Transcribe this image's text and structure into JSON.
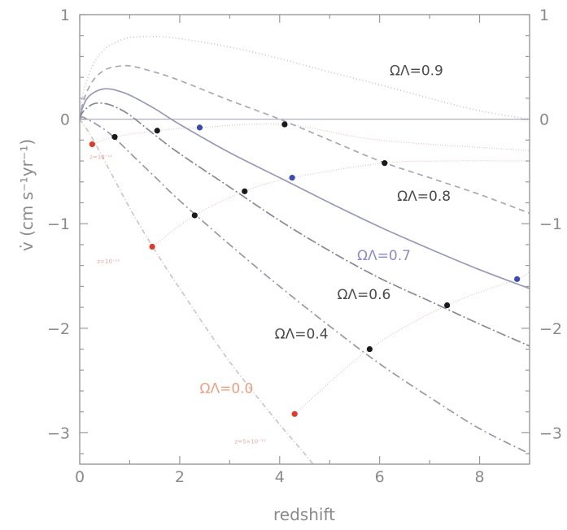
{
  "chart_data": {
    "type": "line",
    "xlabel": "redshift",
    "ylabel": "v̇ (cm s⁻¹yr⁻¹)",
    "xlim": [
      0,
      9
    ],
    "ylim": [
      -3.3,
      1
    ],
    "xticks": [
      "0",
      "2",
      "4",
      "6",
      "8"
    ],
    "yticks": [
      "1",
      "0",
      "−1",
      "−2",
      "−3"
    ],
    "zero_line": true,
    "series": [
      {
        "name": "Ω_Λ=0.9",
        "label_text": "ΩΛ=0.9",
        "color": "#c4c4dc",
        "dash": "1,3",
        "x": [
          0,
          0.05,
          0.15,
          0.3,
          0.5,
          0.7,
          1.0,
          1.5,
          2,
          3,
          4,
          5,
          6,
          7,
          8,
          9
        ],
        "y": [
          0,
          0.2,
          0.38,
          0.55,
          0.67,
          0.73,
          0.78,
          0.79,
          0.77,
          0.69,
          0.58,
          0.45,
          0.33,
          0.2,
          0.08,
          0
        ]
      },
      {
        "name": "Ω_Λ=0.8",
        "label_text": "ΩΛ=0.8",
        "color": "#a8a8b8",
        "dash": "7,5",
        "x": [
          0,
          0.05,
          0.15,
          0.3,
          0.5,
          0.7,
          1.0,
          1.5,
          2,
          3,
          4,
          5,
          6,
          7,
          8,
          9
        ],
        "y": [
          0,
          0.13,
          0.27,
          0.39,
          0.47,
          0.5,
          0.51,
          0.45,
          0.37,
          0.18,
          0,
          -0.2,
          -0.4,
          -0.56,
          -0.72,
          -0.9
        ]
      },
      {
        "name": "Ω_Λ=0.7",
        "label_text": "ΩΛ=0.7",
        "color": "#9898b8",
        "dash": "",
        "x": [
          0,
          0.05,
          0.15,
          0.3,
          0.5,
          0.7,
          1.0,
          1.5,
          2,
          3,
          4,
          5,
          6,
          7,
          8,
          9
        ],
        "y": [
          0,
          0.1,
          0.2,
          0.26,
          0.29,
          0.28,
          0.23,
          0.1,
          -0.05,
          -0.32,
          -0.56,
          -0.8,
          -1.03,
          -1.24,
          -1.44,
          -1.62
        ]
      },
      {
        "name": "Ω_Λ=0.6",
        "label_text": "ΩΛ=0.6",
        "color": "#888898",
        "dash": "12,3,2,3",
        "x": [
          0,
          0.05,
          0.15,
          0.3,
          0.5,
          0.7,
          1.0,
          1.5,
          2,
          3,
          4,
          5,
          6,
          7,
          8,
          9
        ],
        "y": [
          0,
          0.06,
          0.11,
          0.15,
          0.15,
          0.12,
          0.04,
          -0.15,
          -0.33,
          -0.65,
          -0.97,
          -1.26,
          -1.52,
          -1.74,
          -1.96,
          -2.17
        ]
      },
      {
        "name": "Ω_Λ=0.4",
        "label_text": "ΩΛ=0.4",
        "color": "#9898a8",
        "dash": "10,4,2,4",
        "x": [
          0,
          0.05,
          0.15,
          0.3,
          0.5,
          0.7,
          1.0,
          1.5,
          2,
          3,
          4,
          5,
          6,
          7,
          8,
          9
        ],
        "y": [
          0,
          0.02,
          0.0,
          -0.04,
          -0.1,
          -0.18,
          -0.32,
          -0.55,
          -0.78,
          -1.2,
          -1.6,
          -1.98,
          -2.34,
          -2.66,
          -2.96,
          -3.2
        ]
      },
      {
        "name": "Ω_Λ=0.0",
        "label_text": "ΩΛ=0.0",
        "color": "#d6c4c4",
        "dash": "6,3,1,3",
        "x": [
          0,
          0.2,
          0.5,
          1.0,
          1.5,
          2,
          3,
          4,
          4.5,
          5
        ],
        "y": [
          0,
          -0.14,
          -0.4,
          -0.85,
          -1.25,
          -1.62,
          -2.32,
          -2.92,
          -3.2,
          -3.5
        ]
      }
    ],
    "iso_lines": [
      {
        "label": "z=10⁻¹¹",
        "color": "#e8c0c0",
        "x": [
          0.25,
          0.7,
          1.55,
          2.4,
          4.1,
          6,
          9
        ],
        "y": [
          -0.24,
          -0.17,
          -0.11,
          -0.08,
          -0.05,
          -0.2,
          -0.3
        ]
      },
      {
        "label": "z=10⁻¹⁰",
        "color": "#e8c0c0",
        "x": [
          1.45,
          2.3,
          3.3,
          4.25,
          6.1,
          7.4,
          9
        ],
        "y": [
          -1.22,
          -0.92,
          -0.69,
          -0.56,
          -0.42,
          -0.4,
          -0.4
        ]
      },
      {
        "label": "z=5×10⁻¹⁰",
        "color": "#e8c0c0",
        "x": [
          4.3,
          5.8,
          7.35,
          8.75,
          9
        ],
        "y": [
          -2.82,
          -2.2,
          -1.78,
          -1.53,
          -1.45
        ]
      }
    ],
    "markers": [
      {
        "x": 0.25,
        "y": -0.24,
        "color": "#e03a2a"
      },
      {
        "x": 1.45,
        "y": -1.22,
        "color": "#e03a2a"
      },
      {
        "x": 4.3,
        "y": -2.82,
        "color": "#e03a2a"
      },
      {
        "x": 0.7,
        "y": -0.17,
        "color": "#1a1a1a"
      },
      {
        "x": 1.55,
        "y": -0.11,
        "color": "#1a1a1a"
      },
      {
        "x": 2.3,
        "y": -0.92,
        "color": "#1a1a1a"
      },
      {
        "x": 3.3,
        "y": -0.69,
        "color": "#1a1a1a"
      },
      {
        "x": 4.1,
        "y": -0.05,
        "color": "#1a1a1a"
      },
      {
        "x": 5.8,
        "y": -2.2,
        "color": "#1a1a1a"
      },
      {
        "x": 6.1,
        "y": -0.42,
        "color": "#1a1a1a"
      },
      {
        "x": 7.35,
        "y": -1.78,
        "color": "#1a1a1a"
      },
      {
        "x": 2.4,
        "y": -0.08,
        "color": "#3a4ab0"
      },
      {
        "x": 4.25,
        "y": -0.56,
        "color": "#3a4ab0"
      },
      {
        "x": 8.75,
        "y": -1.53,
        "color": "#3a4ab0"
      }
    ],
    "curve_labels": [
      {
        "text": "ΩΛ=0.9",
        "x": 6.2,
        "y": 0.42,
        "color": "#4a4a4a"
      },
      {
        "text": "ΩΛ=0.8",
        "x": 6.35,
        "y": -0.78,
        "color": "#4a4a4a"
      },
      {
        "text": "ΩΛ=0.7",
        "x": 5.55,
        "y": -1.35,
        "color": "#8a8ad0"
      },
      {
        "text": "ΩΛ=0.6",
        "x": 5.15,
        "y": -1.72,
        "color": "#4a4a4a"
      },
      {
        "text": "ΩΛ=0.4",
        "x": 3.9,
        "y": -2.1,
        "color": "#4a4a4a"
      },
      {
        "text": "ΩΛ=0.0",
        "x": 2.4,
        "y": -2.62,
        "color": "#f0a080"
      },
      {
        "text": "z=10⁻¹¹",
        "x": 0.2,
        "y": -0.38,
        "color": "#e8a8a8"
      },
      {
        "text": "z=10⁻¹⁰",
        "x": 0.35,
        "y": -1.38,
        "color": "#e8a8a8"
      },
      {
        "text": "z=5×10⁻¹⁰",
        "x": 3.1,
        "y": -3.1,
        "color": "#e8a8a8"
      }
    ]
  }
}
